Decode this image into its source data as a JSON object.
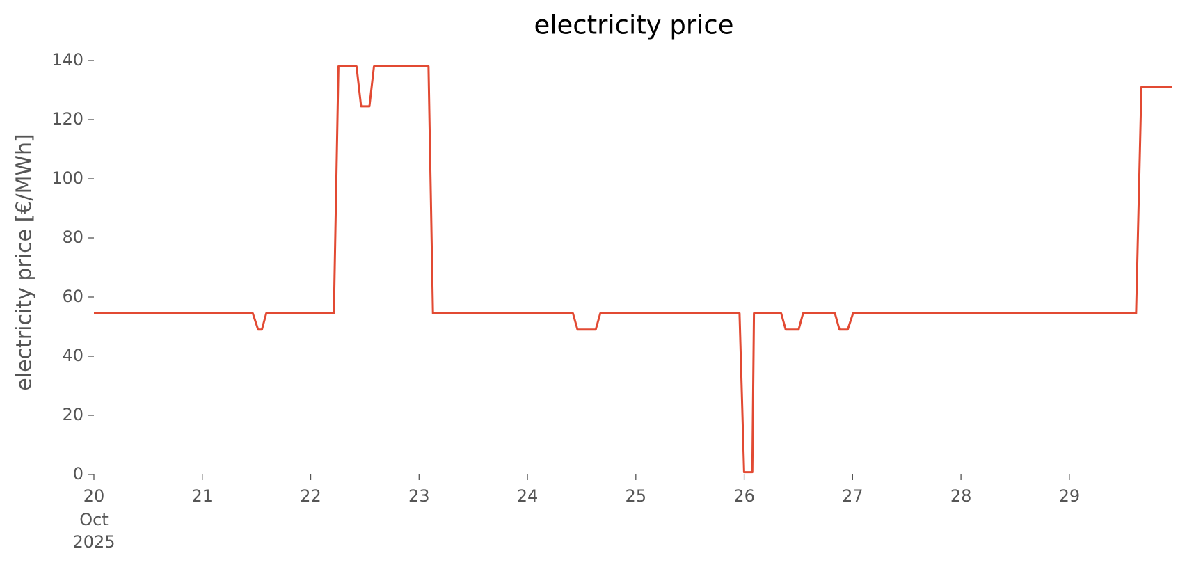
{
  "chart_data": {
    "type": "line",
    "title": "electricity price",
    "ylabel": "electricity price [€/MWh]",
    "x_month": "Oct",
    "x_year": "2025",
    "series": [
      {
        "color": "#E24A33",
        "x": [
          20.0,
          21.466,
          21.515,
          21.55,
          21.59,
          22.214,
          22.256,
          22.423,
          22.465,
          22.542,
          22.584,
          23.087,
          23.128,
          24.42,
          24.462,
          24.63,
          24.672,
          25.957,
          25.999,
          26.075,
          26.09,
          26.341,
          26.383,
          26.502,
          26.543,
          26.837,
          26.879,
          26.955,
          27.004,
          29.616,
          29.665,
          29.951
        ],
        "values": [
          54.5,
          54.5,
          49,
          49,
          54.5,
          54.5,
          138,
          138,
          124.5,
          124.5,
          138,
          138,
          54.5,
          54.5,
          49,
          49,
          54.5,
          54.5,
          0.8,
          0.8,
          54.5,
          54.5,
          49,
          49,
          54.5,
          54.5,
          49,
          49,
          54.5,
          54.5,
          131,
          131
        ]
      }
    ],
    "xlim": [
      20,
      29.951
    ],
    "xticks": [
      20,
      21,
      22,
      23,
      24,
      25,
      26,
      27,
      28,
      29
    ],
    "ylim": [
      0,
      140
    ],
    "yticks": [
      0,
      20,
      40,
      60,
      80,
      100,
      120,
      140
    ],
    "grid": false
  }
}
